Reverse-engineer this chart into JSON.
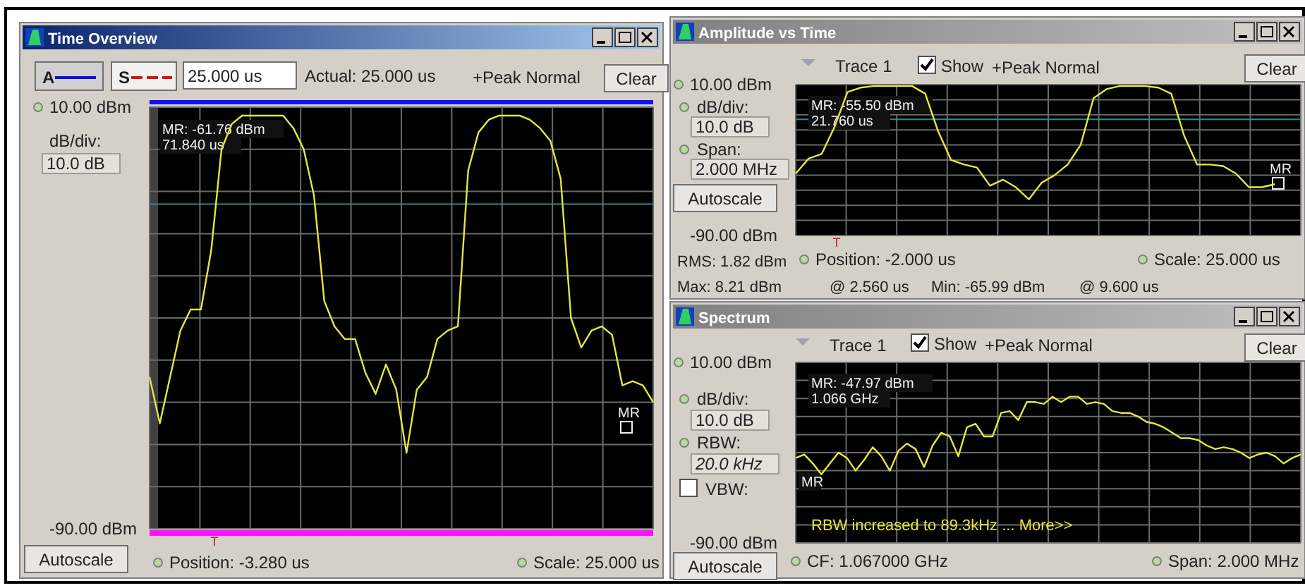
{
  "chart_data": [
    {
      "type": "line",
      "title": "Time Overview",
      "categories": [
        null,
        null,
        null,
        null,
        null,
        null,
        null,
        null,
        null,
        null,
        null,
        null,
        null,
        null,
        null,
        null,
        null,
        null,
        null,
        null,
        null,
        null,
        null,
        null,
        null,
        null,
        null,
        null,
        null,
        null,
        null,
        null,
        null,
        null,
        null,
        null,
        null,
        null,
        null,
        null,
        null,
        null,
        null,
        null,
        null,
        null,
        null,
        null,
        null,
        null
      ],
      "series": [
        {
          "color": "#e6e640",
          "values": [
            -54,
            -65,
            -54,
            -43,
            -38,
            -38,
            -24,
            0,
            6,
            8,
            8,
            8,
            8,
            8,
            5,
            0,
            -11,
            -36,
            -42,
            -45,
            -45,
            -53,
            -58,
            -51,
            -57,
            -72,
            -57,
            -54,
            -45,
            -43,
            -42,
            -5,
            4,
            7,
            8,
            8,
            8,
            7,
            5,
            2,
            -7,
            -40,
            -47,
            -43,
            -42,
            -44,
            -56,
            -55,
            -56,
            -60
          ]
        }
      ],
      "ylim": [
        -90,
        10
      ],
      "yticks": [
        {
          "value": 10,
          "label": "10.00 dBm"
        },
        {
          "value": 0,
          "label": null
        },
        {
          "value": -10,
          "label": null
        },
        {
          "value": -20,
          "label": null
        },
        {
          "value": -30,
          "label": null
        },
        {
          "value": -40,
          "label": null
        },
        {
          "value": -50,
          "label": null
        },
        {
          "value": -60,
          "label": null
        },
        {
          "value": -70,
          "label": null
        },
        {
          "value": -80,
          "label": null
        },
        {
          "value": -90,
          "label": "-90.00 dBm"
        }
      ],
      "grid": true,
      "tick_labels": "y",
      "ref_lines": [
        {
          "axis": "y",
          "value": -13,
          "color": "#2a8c8c"
        }
      ],
      "annotations": [
        "A",
        "S",
        "25.000 us",
        "Actual:  25.000 us",
        "+Peak Normal",
        "Clear",
        "dB/div:",
        "10.0 dB",
        "MR: -61.76 dBm",
        "71.840 us",
        "MR",
        "T",
        "Autoscale",
        "Position:  -3.280 us",
        "Scale:  25.000 us"
      ]
    },
    {
      "type": "line",
      "title": "Amplitude vs Time",
      "categories": [
        null,
        null,
        null,
        null,
        null,
        null,
        null,
        null,
        null,
        null,
        null,
        null,
        null,
        null,
        null,
        null,
        null,
        null,
        null,
        null,
        null,
        null,
        null,
        null,
        null,
        null,
        null,
        null,
        null,
        null,
        null,
        null,
        null,
        null,
        null,
        null,
        null,
        null,
        null,
        null
      ],
      "series": [
        {
          "color": "#e6e640",
          "values": [
            -49,
            -39,
            -36,
            -18,
            5,
            8,
            9,
            9,
            9,
            9,
            4,
            -21,
            -40,
            -43,
            -45,
            -57,
            -53,
            -58,
            -66,
            -55,
            -50,
            -43,
            -30,
            1,
            7,
            9,
            9,
            9,
            8,
            4,
            -24,
            -43,
            -43,
            -44,
            -49,
            -58,
            -58,
            -56,
            null,
            null
          ]
        }
      ],
      "ylim": [
        -90,
        10
      ],
      "yticks": [
        {
          "value": 10,
          "label": "10.00 dBm"
        },
        {
          "value": 0,
          "label": null
        },
        {
          "value": -10,
          "label": null
        },
        {
          "value": -20,
          "label": null
        },
        {
          "value": -30,
          "label": null
        },
        {
          "value": -40,
          "label": null
        },
        {
          "value": -50,
          "label": null
        },
        {
          "value": -60,
          "label": null
        },
        {
          "value": -70,
          "label": null
        },
        {
          "value": -80,
          "label": null
        },
        {
          "value": -90,
          "label": "-90.00 dBm"
        }
      ],
      "grid": true,
      "tick_labels": "y",
      "ref_lines": [
        {
          "axis": "y",
          "value": -13,
          "color": "#2a8c8c"
        }
      ],
      "annotations": [
        "Trace 1",
        "Show",
        "+Peak Normal",
        "Clear",
        "dB/div:",
        "10.0 dB",
        "Span:",
        "2.000 MHz",
        "MR: -55.50 dBm",
        "21.760 us",
        "MR",
        "T",
        "Autoscale",
        "RMS:  1.82 dBm",
        "Position:  -2.000 us",
        "Scale:  25.000 us",
        "Max:    8.21 dBm",
        "@  2.560 us",
        "Min:    -65.99 dBm",
        "@  9.600 us"
      ]
    },
    {
      "type": "line",
      "title": "Spectrum",
      "categories": [
        null,
        null,
        null,
        null,
        null,
        null,
        null,
        null,
        null,
        null,
        null,
        null,
        null,
        null,
        null,
        null,
        null,
        null,
        null,
        null,
        null,
        null,
        null,
        null,
        null,
        null,
        null,
        null,
        null,
        null,
        null,
        null,
        null,
        null,
        null,
        null,
        null,
        null,
        null,
        null,
        null,
        null,
        null,
        null,
        null,
        null,
        null,
        null,
        null,
        null,
        null,
        null,
        null,
        null,
        null,
        null,
        null,
        null,
        null,
        null
      ],
      "series": [
        {
          "color": "#e6e640",
          "values": [
            -43,
            -41,
            -46,
            -52,
            -46,
            -40,
            -43,
            -50,
            -44,
            -37,
            -42,
            -50,
            -39,
            -35,
            -38,
            -48,
            -36,
            -29,
            -31,
            -42,
            -26,
            -24,
            -31,
            -31,
            -18,
            -17,
            -22,
            -12,
            -12,
            -13,
            -9,
            -12,
            -9,
            -9,
            -13,
            -12,
            -13,
            -17,
            -18,
            -18,
            -20,
            -23,
            -24,
            -26,
            -29,
            -32,
            -32,
            -33,
            -36,
            -38,
            -37,
            -38,
            -40,
            -43,
            -41,
            -40,
            -42,
            -46,
            -43,
            -41
          ]
        }
      ],
      "ylim": [
        -90,
        10
      ],
      "yticks": [
        {
          "value": 10,
          "label": "10.00 dBm"
        },
        {
          "value": 0,
          "label": null
        },
        {
          "value": -10,
          "label": null
        },
        {
          "value": -20,
          "label": null
        },
        {
          "value": -30,
          "label": null
        },
        {
          "value": -40,
          "label": null
        },
        {
          "value": -50,
          "label": null
        },
        {
          "value": -60,
          "label": null
        },
        {
          "value": -70,
          "label": null
        },
        {
          "value": -80,
          "label": null
        },
        {
          "value": -90,
          "label": "-90.00 dBm"
        }
      ],
      "grid": true,
      "tick_labels": "y",
      "annotations": [
        "Trace 1",
        "Show",
        "+Peak Normal",
        "Clear",
        "dB/div:",
        "10.0 dB",
        "RBW:",
        "20.0 kHz",
        "VBW:",
        "MR: -47.97 dBm",
        "1.066 GHz",
        "MR",
        "RBW increased to 89.3kHz ... More>>",
        "Autoscale",
        "CF:  1.067000 GHz",
        "Span:  2.000 MHz"
      ]
    }
  ]
}
